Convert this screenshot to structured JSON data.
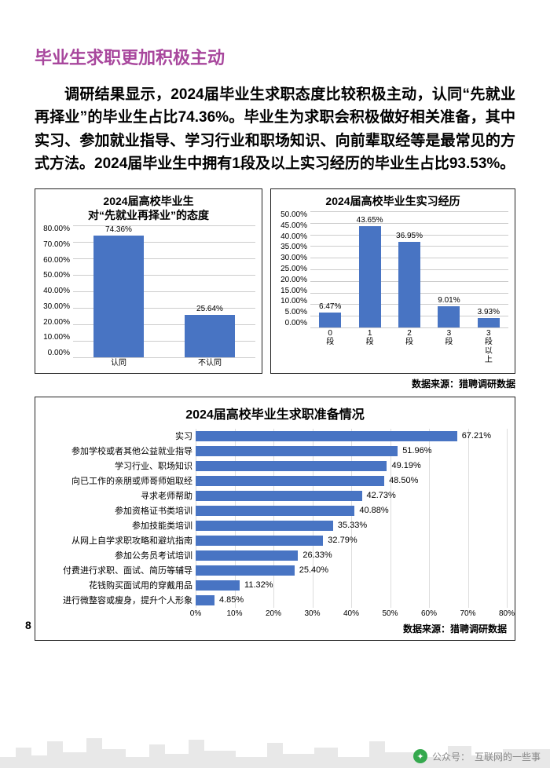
{
  "page_number": "8",
  "heading": "毕业生求职更加积极主动",
  "heading_color": "#a8479d",
  "body_text": "调研结果显示，2024届毕业生求职态度比较积极主动，认同“先就业再择业”的毕业生占比74.36%。毕业生为求职会积极做好相关准备，其中实习、参加就业指导、学习行业和职场知识、向前辈取经等是最常见的方式方法。2024届毕业生中拥有1段及以上实习经历的毕业生占比93.53%。",
  "top_left_chart": {
    "type": "bar",
    "title": "2024届高校毕业生\n对“先就业再择业”的态度",
    "title_fontsize": 14,
    "y_ticks": [
      "80.00%",
      "70.00%",
      "60.00%",
      "50.00%",
      "40.00%",
      "30.00%",
      "20.00%",
      "10.00%",
      "0.00%"
    ],
    "ymax": 80,
    "categories": [
      "认同",
      "不认同"
    ],
    "values": [
      74.36,
      25.64
    ],
    "value_labels": [
      "74.36%",
      "25.64%"
    ],
    "bar_color": "#4874c3",
    "grid_color": "#cccccc",
    "label_fontsize": 10
  },
  "top_right_chart": {
    "type": "bar",
    "title": "2024届高校毕业生实习经历",
    "title_fontsize": 14,
    "y_ticks": [
      "50.00%",
      "45.00%",
      "40.00%",
      "35.00%",
      "30.00%",
      "25.00%",
      "20.00%",
      "15.00%",
      "10.00%",
      "5.00%",
      "0.00%"
    ],
    "ymax": 50,
    "categories": [
      "0\n段",
      "1\n段",
      "2\n段",
      "3\n段",
      "3\n段\n以\n上"
    ],
    "values": [
      6.47,
      43.65,
      36.95,
      9.01,
      3.93
    ],
    "value_labels": [
      "6.47%",
      "43.65%",
      "36.95%",
      "9.01%",
      "3.93%"
    ],
    "bar_color": "#4874c3",
    "grid_color": "#cccccc",
    "label_fontsize": 10
  },
  "source_line": "数据来源：猎聘调研数据",
  "bottom_chart": {
    "type": "hbar",
    "title": "2024届高校毕业生求职准备情况",
    "title_fontsize": 16,
    "x_ticks": [
      "0%",
      "10%",
      "20%",
      "30%",
      "40%",
      "50%",
      "60%",
      "70%",
      "80%"
    ],
    "xmax": 80,
    "bar_color": "#4874c3",
    "grid_color": "#dddddd",
    "label_fontsize": 11,
    "items": [
      {
        "label": "实习",
        "value": 67.21,
        "value_label": "67.21%"
      },
      {
        "label": "参加学校或者其他公益就业指导",
        "value": 51.96,
        "value_label": "51.96%"
      },
      {
        "label": "学习行业、职场知识",
        "value": 49.19,
        "value_label": "49.19%"
      },
      {
        "label": "向已工作的亲朋或师哥师姐取经",
        "value": 48.5,
        "value_label": "48.50%"
      },
      {
        "label": "寻求老师帮助",
        "value": 42.73,
        "value_label": "42.73%"
      },
      {
        "label": "参加资格证书类培训",
        "value": 40.88,
        "value_label": "40.88%"
      },
      {
        "label": "参加技能类培训",
        "value": 35.33,
        "value_label": "35.33%"
      },
      {
        "label": "从网上自学求职攻略和避坑指南",
        "value": 32.79,
        "value_label": "32.79%"
      },
      {
        "label": "参加公务员考试培训",
        "value": 26.33,
        "value_label": "26.33%"
      },
      {
        "label": "付费进行求职、面试、简历等辅导",
        "value": 25.4,
        "value_label": "25.40%"
      },
      {
        "label": "花钱购买面试用的穿戴用品",
        "value": 11.32,
        "value_label": "11.32%"
      },
      {
        "label": "进行微整容或瘦身，提升个人形象",
        "value": 4.85,
        "value_label": "4.85%"
      }
    ],
    "source": "数据来源：猎聘调研数据"
  },
  "watermark": {
    "prefix": "公众号：",
    "name": "互联网的一些事"
  }
}
